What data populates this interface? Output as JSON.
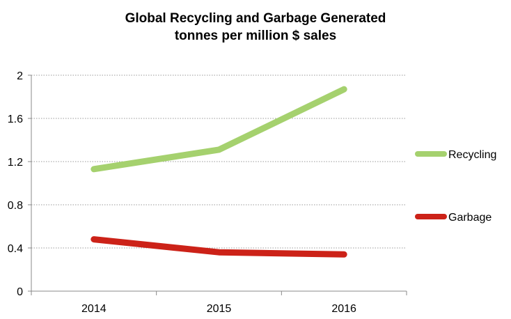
{
  "chart_data": {
    "type": "line",
    "title": "Global Recycling and Garbage Generated",
    "subtitle": "tonnes per million $ sales",
    "xlabel": "",
    "ylabel": "",
    "categories": [
      "2014",
      "2015",
      "2016"
    ],
    "ylim": [
      0,
      2
    ],
    "yticks": [
      "0",
      "0.4",
      "0.8",
      "1.2",
      "1.6",
      "2"
    ],
    "ytick_values": [
      0,
      0.4,
      0.8,
      1.2,
      1.6,
      2
    ],
    "grid": "horizontal dotted",
    "legend_position": "right",
    "series": [
      {
        "name": "Recycling",
        "color": "#a5d16e",
        "values": [
          1.13,
          1.31,
          1.87
        ]
      },
      {
        "name": "Garbage",
        "color": "#cc2218",
        "values": [
          0.48,
          0.36,
          0.34
        ]
      }
    ]
  }
}
